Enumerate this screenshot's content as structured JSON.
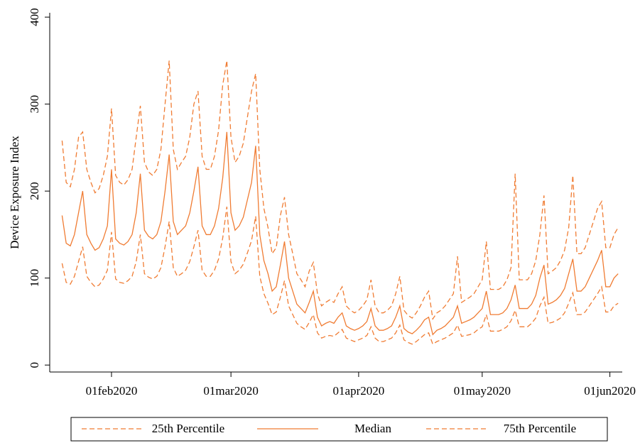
{
  "chart_data": {
    "type": "line",
    "ylabel": "Device Exposure Index",
    "x": [
      "2020-01-20",
      "2020-01-21",
      "2020-01-22",
      "2020-01-23",
      "2020-01-24",
      "2020-01-25",
      "2020-01-26",
      "2020-01-27",
      "2020-01-28",
      "2020-01-29",
      "2020-01-30",
      "2020-01-31",
      "2020-02-01",
      "2020-02-02",
      "2020-02-03",
      "2020-02-04",
      "2020-02-05",
      "2020-02-06",
      "2020-02-07",
      "2020-02-08",
      "2020-02-09",
      "2020-02-10",
      "2020-02-11",
      "2020-02-12",
      "2020-02-13",
      "2020-02-14",
      "2020-02-15",
      "2020-02-16",
      "2020-02-17",
      "2020-02-18",
      "2020-02-19",
      "2020-02-20",
      "2020-02-21",
      "2020-02-22",
      "2020-02-23",
      "2020-02-24",
      "2020-02-25",
      "2020-02-26",
      "2020-02-27",
      "2020-02-28",
      "2020-02-29",
      "2020-03-01",
      "2020-03-02",
      "2020-03-03",
      "2020-03-04",
      "2020-03-05",
      "2020-03-06",
      "2020-03-07",
      "2020-03-08",
      "2020-03-09",
      "2020-03-10",
      "2020-03-11",
      "2020-03-12",
      "2020-03-13",
      "2020-03-14",
      "2020-03-15",
      "2020-03-16",
      "2020-03-17",
      "2020-03-18",
      "2020-03-19",
      "2020-03-20",
      "2020-03-21",
      "2020-03-22",
      "2020-03-23",
      "2020-03-24",
      "2020-03-25",
      "2020-03-26",
      "2020-03-27",
      "2020-03-28",
      "2020-03-29",
      "2020-03-30",
      "2020-03-31",
      "2020-04-01",
      "2020-04-02",
      "2020-04-03",
      "2020-04-04",
      "2020-04-05",
      "2020-04-06",
      "2020-04-07",
      "2020-04-08",
      "2020-04-09",
      "2020-04-10",
      "2020-04-11",
      "2020-04-12",
      "2020-04-13",
      "2020-04-14",
      "2020-04-15",
      "2020-04-16",
      "2020-04-17",
      "2020-04-18",
      "2020-04-19",
      "2020-04-20",
      "2020-04-21",
      "2020-04-22",
      "2020-04-23",
      "2020-04-24",
      "2020-04-25",
      "2020-04-26",
      "2020-04-27",
      "2020-04-28",
      "2020-04-29",
      "2020-04-30",
      "2020-05-01",
      "2020-05-02",
      "2020-05-03",
      "2020-05-04",
      "2020-05-05",
      "2020-05-06",
      "2020-05-07",
      "2020-05-08",
      "2020-05-09",
      "2020-05-10",
      "2020-05-11",
      "2020-05-12",
      "2020-05-13",
      "2020-05-14",
      "2020-05-15",
      "2020-05-16",
      "2020-05-17",
      "2020-05-18",
      "2020-05-19",
      "2020-05-20",
      "2020-05-21",
      "2020-05-22",
      "2020-05-23",
      "2020-05-24",
      "2020-05-25",
      "2020-05-26",
      "2020-05-27",
      "2020-05-28",
      "2020-05-29",
      "2020-05-30",
      "2020-05-31",
      "2020-06-01",
      "2020-06-02",
      "2020-06-03"
    ],
    "series": [
      {
        "name": "25th Percentile",
        "color": "#f07c33",
        "dash": true,
        "values": [
          117,
          95,
          93,
          102,
          119,
          136,
          102,
          95,
          90,
          92,
          99,
          109,
          153,
          99,
          95,
          94,
          97,
          102,
          119,
          150,
          105,
          101,
          99,
          102,
          112,
          136,
          165,
          112,
          102,
          105,
          109,
          119,
          136,
          155,
          109,
          102,
          102,
          109,
          122,
          146,
          182,
          119,
          105,
          109,
          116,
          129,
          143,
          171,
          102,
          82,
          71,
          58,
          61,
          78,
          97,
          68,
          58,
          48,
          44,
          41,
          49,
          58,
          37,
          31,
          33,
          34,
          33,
          37,
          41,
          31,
          29,
          27,
          29,
          31,
          34,
          44,
          31,
          27,
          27,
          29,
          31,
          37,
          46,
          29,
          26,
          24,
          27,
          31,
          35,
          37,
          24,
          27,
          29,
          31,
          34,
          37,
          46,
          33,
          34,
          35,
          37,
          41,
          44,
          58,
          39,
          39,
          39,
          41,
          44,
          51,
          63,
          44,
          44,
          44,
          48,
          54,
          68,
          78,
          48,
          49,
          51,
          54,
          60,
          71,
          83,
          58,
          58,
          61,
          68,
          75,
          82,
          90,
          61,
          61,
          68,
          71
        ]
      },
      {
        "name": "Median",
        "color": "#f07c33",
        "dash": false,
        "values": [
          172,
          140,
          137,
          150,
          175,
          200,
          150,
          140,
          132,
          135,
          145,
          160,
          225,
          145,
          140,
          138,
          142,
          150,
          175,
          220,
          155,
          148,
          145,
          150,
          165,
          200,
          242,
          165,
          150,
          155,
          160,
          175,
          200,
          228,
          160,
          150,
          150,
          160,
          180,
          215,
          268,
          175,
          155,
          160,
          170,
          190,
          210,
          252,
          150,
          120,
          105,
          85,
          90,
          115,
          142,
          100,
          85,
          70,
          65,
          60,
          72,
          85,
          55,
          45,
          48,
          50,
          48,
          55,
          60,
          45,
          42,
          40,
          42,
          45,
          50,
          65,
          45,
          40,
          40,
          42,
          45,
          55,
          68,
          42,
          38,
          36,
          40,
          45,
          52,
          55,
          35,
          40,
          42,
          45,
          50,
          55,
          68,
          48,
          50,
          52,
          55,
          60,
          65,
          85,
          58,
          58,
          58,
          60,
          65,
          75,
          92,
          65,
          65,
          65,
          70,
          80,
          100,
          115,
          70,
          72,
          75,
          80,
          88,
          105,
          122,
          85,
          85,
          90,
          100,
          110,
          120,
          132,
          90,
          90,
          100,
          105
        ]
      },
      {
        "name": "75th Percentile",
        "color": "#f07c33",
        "dash": true,
        "values": [
          258,
          210,
          205,
          225,
          262,
          268,
          225,
          210,
          198,
          203,
          218,
          240,
          295,
          218,
          210,
          207,
          213,
          225,
          262,
          298,
          233,
          222,
          218,
          225,
          248,
          300,
          350,
          248,
          225,
          233,
          240,
          262,
          300,
          315,
          240,
          225,
          225,
          240,
          270,
          322,
          350,
          262,
          233,
          240,
          255,
          285,
          315,
          335,
          225,
          180,
          158,
          128,
          135,
          172,
          193,
          150,
          128,
          105,
          98,
          90,
          108,
          118,
          82,
          68,
          72,
          75,
          72,
          82,
          90,
          68,
          63,
          60,
          63,
          68,
          75,
          98,
          68,
          60,
          60,
          63,
          68,
          82,
          102,
          63,
          57,
          54,
          60,
          68,
          78,
          85,
          53,
          60,
          63,
          68,
          75,
          82,
          125,
          72,
          75,
          78,
          82,
          90,
          98,
          142,
          87,
          87,
          87,
          90,
          98,
          112,
          220,
          98,
          98,
          98,
          105,
          120,
          150,
          195,
          105,
          108,
          112,
          120,
          132,
          158,
          218,
          128,
          128,
          135,
          150,
          165,
          180,
          188,
          135,
          135,
          150,
          158
        ]
      }
    ],
    "xlim": [
      "2020-01-17",
      "2020-06-04"
    ],
    "xticks": [
      {
        "value": "2020-02-01",
        "label": "01feb2020"
      },
      {
        "value": "2020-03-01",
        "label": "01mar2020"
      },
      {
        "value": "2020-04-01",
        "label": "01apr2020"
      },
      {
        "value": "2020-05-01",
        "label": "01may2020"
      },
      {
        "value": "2020-06-01",
        "label": "01jun2020"
      }
    ],
    "ylim": [
      -8,
      405
    ],
    "yticks": [
      0,
      100,
      200,
      300,
      400
    ],
    "grid": false,
    "legend": "bottom"
  }
}
